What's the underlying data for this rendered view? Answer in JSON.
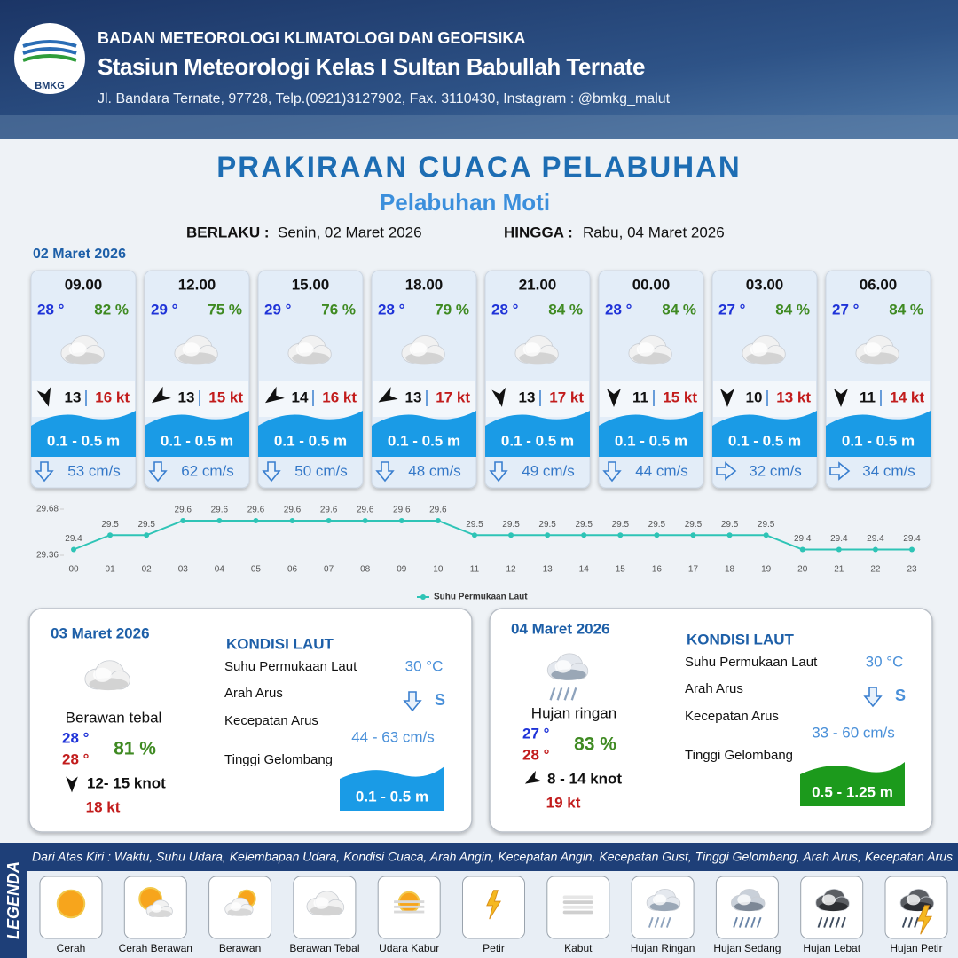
{
  "header": {
    "logo": "BMKG",
    "organization": "BADAN METEOROLOGI KLIMATOLOGI DAN GEOFISIKA",
    "station": "Stasiun Meteorologi Kelas I Sultan Babullah Ternate",
    "address": "Jl. Bandara Ternate, 97728, Telp.(0921)3127902, Fax. 3110430, Instagram : @bmkg_malut"
  },
  "title": "PRAKIRAAN CUACA PELABUHAN",
  "subtitle": "Pelabuhan Moti",
  "validity": {
    "from_label": "BERLAKU :",
    "from": "Senin, 02 Maret 2026",
    "until_label": "HINGGA :",
    "until": "Rabu, 04 Maret 2026"
  },
  "forecast": {
    "date": "02 Maret 2026",
    "hours": [
      {
        "time": "09.00",
        "temp": "28 °",
        "humidity": "82 %",
        "wind": "13",
        "gust": "16 kt",
        "wave": "0.1 - 0.5 m",
        "current": "53 cm/s"
      },
      {
        "time": "12.00",
        "temp": "29 °",
        "humidity": "75 %",
        "wind": "13",
        "gust": "15 kt",
        "wave": "0.1 - 0.5 m",
        "current": "62 cm/s"
      },
      {
        "time": "15.00",
        "temp": "29 °",
        "humidity": "76 %",
        "wind": "14",
        "gust": "16 kt",
        "wave": "0.1 - 0.5 m",
        "current": "50 cm/s"
      },
      {
        "time": "18.00",
        "temp": "28 °",
        "humidity": "79 %",
        "wind": "13",
        "gust": "17 kt",
        "wave": "0.1 - 0.5 m",
        "current": "48 cm/s"
      },
      {
        "time": "21.00",
        "temp": "28 °",
        "humidity": "84 %",
        "wind": "13",
        "gust": "17 kt",
        "wave": "0.1 - 0.5 m",
        "current": "49 cm/s"
      },
      {
        "time": "00.00",
        "temp": "28 °",
        "humidity": "84 %",
        "wind": "11",
        "gust": "15 kt",
        "wave": "0.1 - 0.5 m",
        "current": "44 cm/s"
      },
      {
        "time": "03.00",
        "temp": "27 °",
        "humidity": "84 %",
        "wind": "10",
        "gust": "13 kt",
        "wave": "0.1 - 0.5 m",
        "current": "32 cm/s"
      },
      {
        "time": "06.00",
        "temp": "27 °",
        "humidity": "84 %",
        "wind": "11",
        "gust": "14 kt",
        "wave": "0.1 - 0.5 m",
        "current": "34 cm/s"
      }
    ]
  },
  "chart_data": {
    "type": "line",
    "categories": [
      "00",
      "01",
      "02",
      "03",
      "04",
      "05",
      "06",
      "07",
      "08",
      "09",
      "10",
      "11",
      "12",
      "13",
      "14",
      "15",
      "16",
      "17",
      "18",
      "19",
      "20",
      "21",
      "22",
      "23"
    ],
    "series": [
      {
        "name": "Suhu Permukaan Laut",
        "color": "#2ec4b6",
        "values": [
          29.4,
          29.5,
          29.5,
          29.6,
          29.6,
          29.6,
          29.6,
          29.6,
          29.6,
          29.6,
          29.6,
          29.5,
          29.5,
          29.5,
          29.5,
          29.5,
          29.5,
          29.5,
          29.5,
          29.5,
          29.4,
          29.4,
          29.4,
          29.4
        ]
      }
    ],
    "ylim": [
      29.36,
      29.68
    ],
    "yticks": [
      29.36,
      29.68
    ],
    "grid": false,
    "legend": "bottom"
  },
  "daily": [
    {
      "date": "03 Maret 2026",
      "condition": "Berawan tebal",
      "temp_min": "28 °",
      "temp_max": "28 °",
      "humidity": "81 %",
      "wind": "12- 15 knot",
      "gust": "18 kt",
      "sea": {
        "title": "KONDISI LAUT",
        "sst_label": "Suhu Permukaan Laut",
        "sst": "30 °C",
        "current_dir_label": "Arah Arus",
        "current_dir": "S",
        "current_speed_label": "Kecepatan Arus",
        "current_speed": "44 - 63 cm/s",
        "wave_label": "Tinggi Gelombang",
        "wave": "0.1 - 0.5 m",
        "wave_color": "#1a9be6"
      }
    },
    {
      "date": "04 Maret 2026",
      "condition": "Hujan ringan",
      "temp_min": "27 °",
      "temp_max": "28 °",
      "humidity": "83 %",
      "wind": "8 - 14 knot",
      "gust": "19 kt",
      "sea": {
        "title": "KONDISI LAUT",
        "sst_label": "Suhu Permukaan Laut",
        "sst": "30 °C",
        "current_dir_label": "Arah Arus",
        "current_dir": "S",
        "current_speed_label": "Kecepatan Arus",
        "current_speed": "33 - 60 cm/s",
        "wave_label": "Tinggi Gelombang",
        "wave": "0.5 - 1.25 m",
        "wave_color": "#1c9a1c"
      }
    }
  ],
  "legend": {
    "title": "LEGENDA",
    "description": "Dari Atas Kiri : Waktu, Suhu Udara, Kelembapan Udara, Kondisi Cuaca, Arah Angin, Kecepatan Angin, Kecepatan Gust, Tinggi Gelombang, Arah Arus, Kecepatan Arus",
    "items": [
      "Cerah",
      "Cerah Berawan",
      "Berawan",
      "Berawan Tebal",
      "Udara Kabur",
      "Petir",
      "Kabut",
      "Hujan Ringan",
      "Hujan Sedang",
      "Hujan Lebat",
      "Hujan Petir"
    ]
  }
}
